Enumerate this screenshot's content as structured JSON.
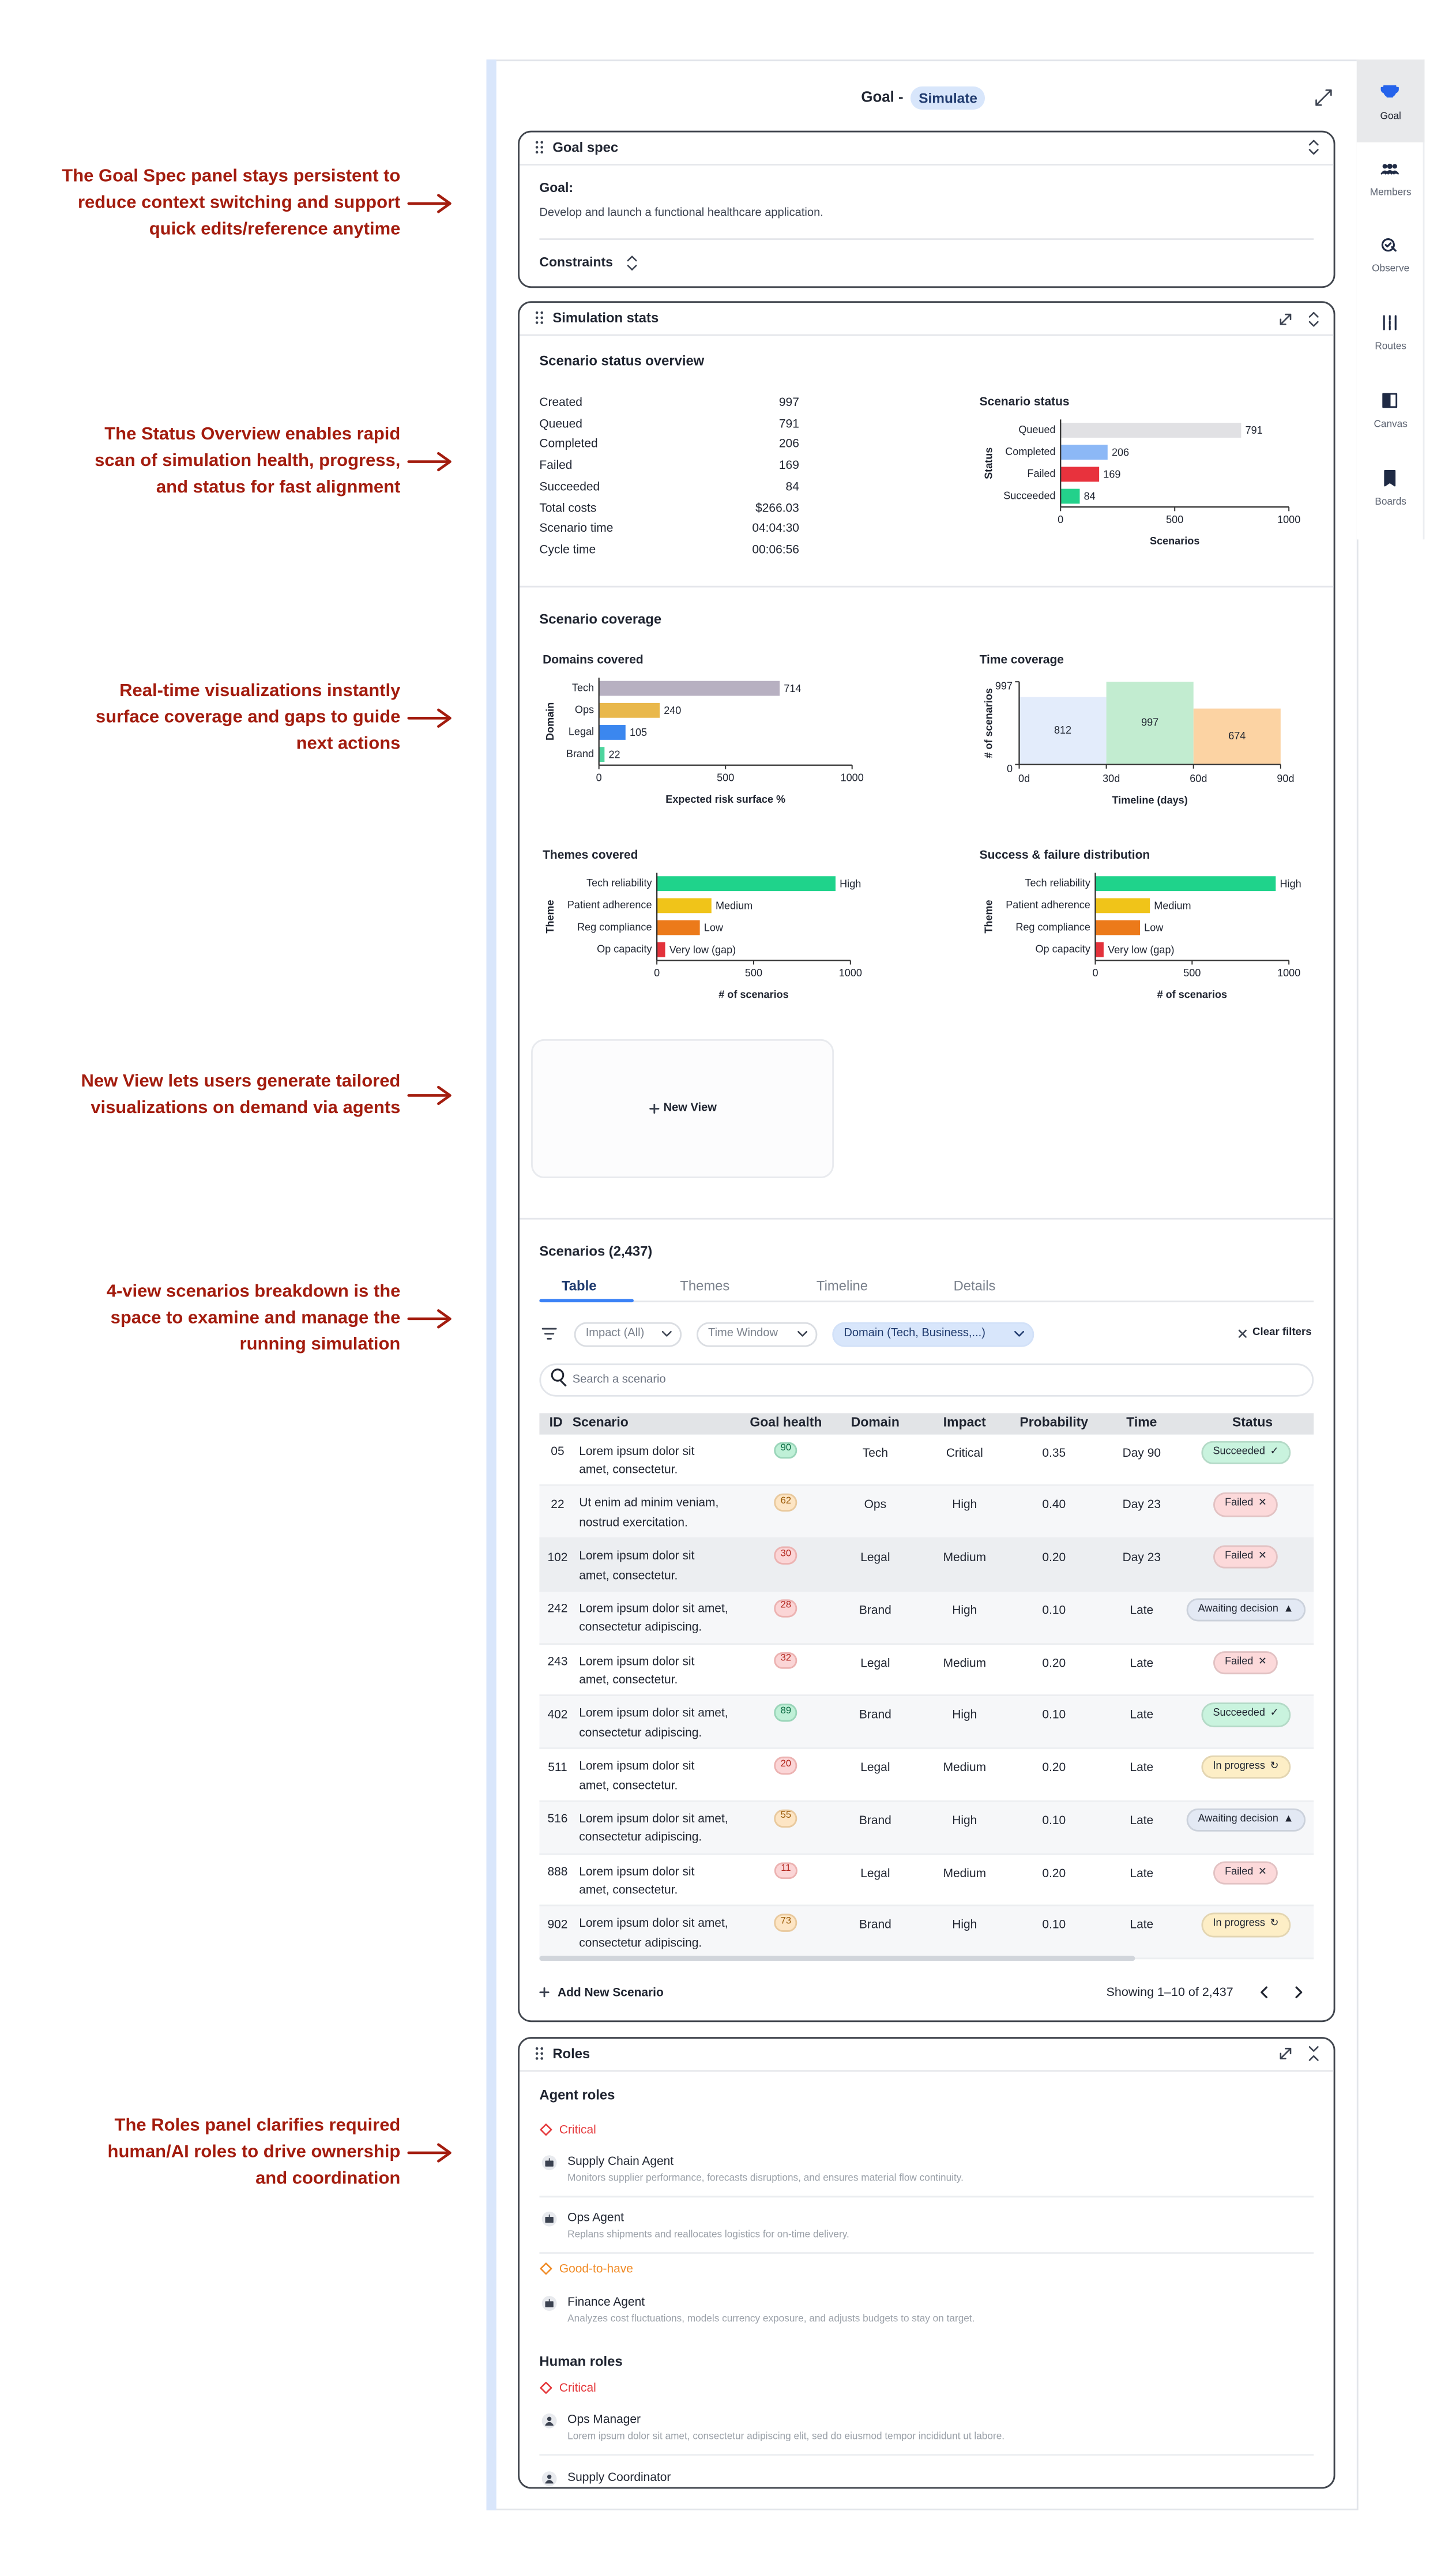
{
  "annotations": [
    [
      "The Goal Spec panel stays persistent to",
      "reduce context switching and support",
      "quick edits/reference anytime"
    ],
    [
      "The Status Overview enables rapid",
      "scan of simulation health, progress,",
      "and status for fast alignment"
    ],
    [
      "Real-time visualizations instantly",
      "surface coverage and gaps to guide",
      "next actions"
    ],
    [
      "New View lets users generate tailored",
      "visualizations on demand via agents"
    ],
    [
      "4-view scenarios breakdown is the",
      "space to examine and manage the",
      "running simulation"
    ],
    [
      "The Roles panel clarifies required",
      "human/AI roles to drive ownership",
      "and coordination"
    ]
  ],
  "sidebar": [
    "Goal",
    "Members",
    "Observe",
    "Routes",
    "Canvas",
    "Boards"
  ],
  "header": {
    "title": "Goal -",
    "mode": "Simulate"
  },
  "goal_spec": {
    "title": "Goal spec",
    "goal_label": "Goal:",
    "goal_text": "Develop and launch a functional healthcare application.",
    "constraints": "Constraints"
  },
  "simulation_stats": {
    "title": "Simulation stats",
    "overview_title": "Scenario status overview",
    "overview": [
      [
        "Created",
        "997"
      ],
      [
        "Queued",
        "791"
      ],
      [
        "Completed",
        "206"
      ],
      [
        "Failed",
        "169"
      ],
      [
        "Succeeded",
        "84"
      ],
      [
        "Total costs",
        "$266.03"
      ],
      [
        "Scenario time",
        "04:04:30"
      ],
      [
        "Cycle time",
        "00:06:56"
      ]
    ],
    "coverage_title": "Scenario coverage",
    "new_view": "New View"
  },
  "chart_data": [
    {
      "type": "bar",
      "title": "Scenario status",
      "categories": [
        "Queued",
        "Completed",
        "Failed",
        "Succeeded"
      ],
      "values": [
        791,
        206,
        169,
        84
      ],
      "colors": [
        "#e1e1e4",
        "#8cb8f6",
        "#e8323d",
        "#23d18b"
      ],
      "xlim": [
        0,
        1000
      ],
      "xticks": [
        0,
        500,
        1000
      ],
      "xlabel": "Scenarios",
      "ylabel": "Status"
    },
    {
      "type": "bar",
      "title": "Domains covered",
      "categories": [
        "Tech",
        "Ops",
        "Legal",
        "Brand"
      ],
      "values": [
        714,
        240,
        105,
        22
      ],
      "colors": [
        "#b7b0c1",
        "#e9b84c",
        "#3b87ef",
        "#4ed59e"
      ],
      "xlim": [
        0,
        1000
      ],
      "xticks": [
        0,
        500,
        1000
      ],
      "xlabel": "Expected risk surface %",
      "ylabel": "Domain"
    },
    {
      "type": "histogram",
      "title": "Time coverage",
      "bins": [
        0,
        30,
        60,
        90
      ],
      "values": [
        812,
        997,
        674
      ],
      "colors": [
        "#e3ecfb",
        "#c2ecd0",
        "#fcd3a3"
      ],
      "xlim": [
        0,
        90
      ],
      "xticks": [
        {
          "value": 0,
          "label": "0d"
        },
        {
          "value": 30,
          "label": "30d"
        },
        {
          "value": 60,
          "label": "60d"
        },
        {
          "value": 90,
          "label": "90d"
        }
      ],
      "ylim": [
        0,
        997
      ],
      "yticks": [
        0,
        997
      ],
      "xlabel": "Timeline (days)",
      "ylabel": "# of scenarios"
    },
    {
      "type": "bar",
      "title": "Themes covered",
      "categories": [
        "Tech reliability",
        "Patient adherence",
        "Reg compliance",
        "Op capacity"
      ],
      "values": [
        923,
        282,
        222,
        43
      ],
      "value_labels": [
        "High",
        "Medium",
        "Low",
        "Very low (gap)"
      ],
      "colors": [
        "#1fd38b",
        "#f0c419",
        "#ec7a1a",
        "#e3323b"
      ],
      "xlim": [
        0,
        1000
      ],
      "xticks": [
        0,
        500,
        1000
      ],
      "xlabel": "# of scenarios",
      "ylabel": "Theme"
    },
    {
      "type": "bar",
      "title": "Success & failure distribution",
      "categories": [
        "Tech reliability",
        "Patient adherence",
        "Reg compliance",
        "Op capacity"
      ],
      "values": [
        932,
        282,
        231,
        43
      ],
      "value_labels": [
        "High",
        "Medium",
        "Low",
        "Very low (gap)"
      ],
      "colors": [
        "#1fd38b",
        "#f0c419",
        "#ec7a1a",
        "#e3323b"
      ],
      "xlim": [
        0,
        1000
      ],
      "xticks": [
        0,
        500,
        1000
      ],
      "xlabel": "# of scenarios",
      "ylabel": "Theme"
    }
  ],
  "scenarios": {
    "title": "Scenarios (2,437)",
    "tabs": [
      "Table",
      "Themes",
      "Timeline",
      "Details"
    ],
    "filters": [
      "Impact (All)",
      "Time Window",
      "Domain (Tech, Business,...)"
    ],
    "clear_filters": "Clear filters",
    "search_placeholder": "Search a scenario",
    "columns": [
      "ID",
      "Scenario",
      "Goal health",
      "Domain",
      "Impact",
      "Probability",
      "Time",
      "Status"
    ],
    "rows": [
      {
        "id": "05",
        "scenario": [
          "Lorem ipsum dolor sit",
          "amet, consectetur."
        ],
        "health": "90",
        "domain": "Tech",
        "impact": "Critical",
        "probability": "0.35",
        "time": "Day 90",
        "status": {
          "label": "Succeeded",
          "icon": "✓",
          "color": "#c9f3de"
        }
      },
      {
        "id": "22",
        "scenario": [
          "Ut enim ad minim veniam,",
          "nostrud exercitation."
        ],
        "health": "62",
        "domain": "Ops",
        "impact": "High",
        "probability": "0.40",
        "time": "Day 23",
        "status": {
          "label": "Failed",
          "icon": "✕",
          "color": "#fcd9da"
        }
      },
      {
        "id": "102",
        "scenario": [
          "Lorem ipsum dolor sit",
          "amet, consectetur."
        ],
        "health": "30",
        "domain": "Legal",
        "impact": "Medium",
        "probability": "0.20",
        "time": "Day 23",
        "status": {
          "label": "Failed",
          "icon": "✕",
          "color": "#fcd9da"
        }
      },
      {
        "id": "242",
        "scenario": [
          "Lorem ipsum dolor sit amet,",
          "consectetur adipiscing."
        ],
        "health": "28",
        "domain": "Brand",
        "impact": "High",
        "probability": "0.10",
        "time": "Late",
        "status": {
          "label": "Awaiting decision",
          "icon": "▲",
          "color": "#e3e9f4"
        }
      },
      {
        "id": "243",
        "scenario": [
          "Lorem ipsum dolor sit",
          "amet, consectetur."
        ],
        "health": "32",
        "domain": "Legal",
        "impact": "Medium",
        "probability": "0.20",
        "time": "Late",
        "status": {
          "label": "Failed",
          "icon": "✕",
          "color": "#fcd9da"
        }
      },
      {
        "id": "402",
        "scenario": [
          "Lorem ipsum dolor sit amet,",
          "consectetur adipiscing."
        ],
        "health": "89",
        "domain": "Brand",
        "impact": "High",
        "probability": "0.10",
        "time": "Late",
        "status": {
          "label": "Succeeded",
          "icon": "✓",
          "color": "#c9f3de"
        }
      },
      {
        "id": "511",
        "scenario": [
          "Lorem ipsum dolor sit",
          "amet, consectetur."
        ],
        "health": "20",
        "domain": "Legal",
        "impact": "Medium",
        "probability": "0.20",
        "time": "Late",
        "status": {
          "label": "In progress",
          "icon": "↻",
          "color": "#fdeec6"
        }
      },
      {
        "id": "516",
        "scenario": [
          "Lorem ipsum dolor sit amet,",
          "consectetur adipiscing."
        ],
        "health": "55",
        "domain": "Brand",
        "impact": "High",
        "probability": "0.10",
        "time": "Late",
        "status": {
          "label": "Awaiting decision",
          "icon": "▲",
          "color": "#e3e9f4"
        }
      },
      {
        "id": "888",
        "scenario": [
          "Lorem ipsum dolor sit",
          "amet, consectetur."
        ],
        "health": "11",
        "domain": "Legal",
        "impact": "Medium",
        "probability": "0.20",
        "time": "Late",
        "status": {
          "label": "Failed",
          "icon": "✕",
          "color": "#fcd9da"
        }
      },
      {
        "id": "902",
        "scenario": [
          "Lorem ipsum dolor sit amet,",
          "consectetur adipiscing."
        ],
        "health": "73",
        "domain": "Brand",
        "impact": "High",
        "probability": "0.10",
        "time": "Late",
        "status": {
          "label": "In progress",
          "icon": "↻",
          "color": "#fdeec6"
        }
      }
    ],
    "add": "Add New Scenario",
    "pagination": "Showing 1–10 of 2,437"
  },
  "roles": {
    "title": "Roles",
    "agent_title": "Agent roles",
    "agent_groups": [
      {
        "label": "Critical",
        "color": "#e5383b",
        "items": [
          {
            "name": "Supply Chain Agent",
            "desc": "Monitors supplier performance, forecasts disruptions, and ensures material flow continuity."
          },
          {
            "name": "Ops Agent",
            "desc": "Replans shipments and reallocates logistics for on-time delivery."
          }
        ]
      },
      {
        "label": "Good-to-have",
        "color": "#f08a24",
        "items": [
          {
            "name": "Finance Agent",
            "desc": "Analyzes cost fluctuations, models currency exposure, and adjusts budgets to stay on target."
          }
        ]
      }
    ],
    "human_title": "Human roles",
    "human_groups": [
      {
        "label": "Critical",
        "color": "#e5383b",
        "items": [
          {
            "name": "Ops Manager",
            "desc": "Lorem ipsum dolor sit amet, consectetur adipiscing elit, sed do eiusmod tempor incididunt ut labore."
          },
          {
            "name": "Supply Coordinator"
          }
        ]
      }
    ]
  }
}
